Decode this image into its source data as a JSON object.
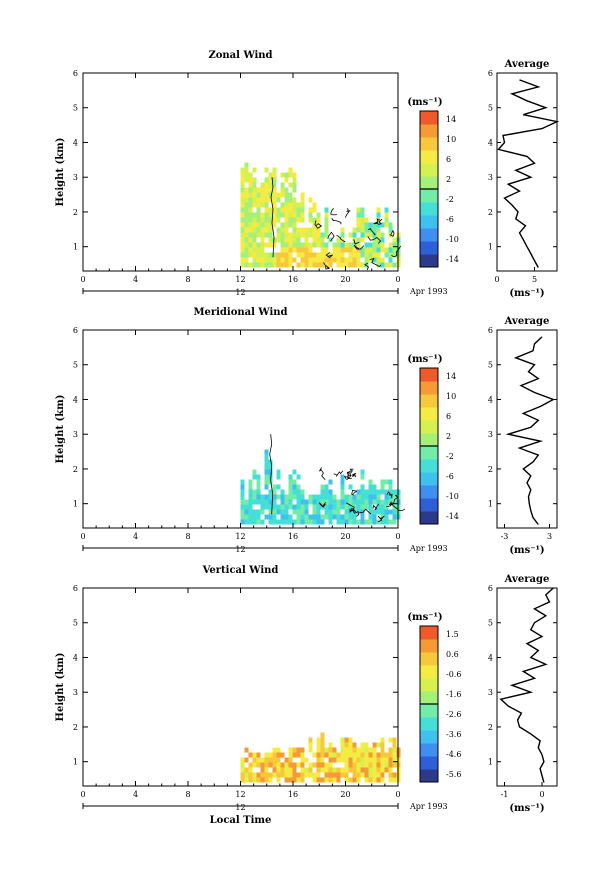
{
  "chart_data": [
    {
      "type": "heatmap",
      "title": "Zonal Wind",
      "ylabel": "Height (km)",
      "xticks": [
        "0",
        "4",
        "8",
        "12",
        "16",
        "20",
        "0"
      ],
      "yticks": [
        "1",
        "2",
        "3",
        "4",
        "5",
        "6"
      ],
      "ylim": [
        0.3,
        6
      ],
      "day_label": "12",
      "date_label": "Apr 1993",
      "colorbar": {
        "unit": "(ms⁻¹)",
        "ticks": [
          "14",
          "10",
          "6",
          "2",
          "-2",
          "-6",
          "-10",
          "-14"
        ],
        "range": [
          -16,
          16
        ]
      },
      "profile": {
        "title": "Average",
        "xticks": [
          "0",
          "5"
        ],
        "xlim": [
          0,
          8
        ],
        "xunit": "(ms⁻¹)",
        "yticks": [
          "1",
          "2",
          "3",
          "4",
          "5",
          "6"
        ],
        "heights": [
          0.4,
          0.6,
          0.8,
          1.0,
          1.2,
          1.4,
          1.6,
          1.8,
          2.0,
          2.2,
          2.4,
          2.6,
          2.8,
          3.0,
          3.2,
          3.4,
          3.6,
          3.8,
          4.0,
          4.2,
          4.4,
          4.6,
          4.8,
          5.0,
          5.2,
          5.4,
          5.6,
          5.8
        ],
        "values": [
          5.5,
          5.0,
          4.5,
          4.0,
          3.5,
          3.0,
          3.8,
          2.5,
          2.8,
          2.0,
          1.0,
          3.0,
          1.5,
          4.5,
          2.5,
          5.0,
          4.0,
          0.2,
          1.0,
          0.8,
          6.0,
          8.0,
          3.5,
          6.5,
          4.0,
          2.0,
          5.5,
          3.0
        ]
      },
      "colorbar_colors": [
        "#2d3a8c",
        "#2f5fd6",
        "#3f8ef0",
        "#3fc0ef",
        "#46dfd8",
        "#73eca9",
        "#a6f07a",
        "#d6f050",
        "#f4ec45",
        "#f7c83c",
        "#f59a35",
        "#ef5a2c"
      ]
    },
    {
      "type": "heatmap",
      "title": "Meridional Wind",
      "ylabel": "Height (km)",
      "xticks": [
        "0",
        "4",
        "8",
        "12",
        "16",
        "20",
        "0"
      ],
      "yticks": [
        "1",
        "2",
        "3",
        "4",
        "5",
        "6"
      ],
      "ylim": [
        0.3,
        6
      ],
      "day_label": "12",
      "date_label": "Apr 1993",
      "colorbar": {
        "unit": "(ms⁻¹)",
        "ticks": [
          "14",
          "10",
          "6",
          "2",
          "-2",
          "-6",
          "-10",
          "-14"
        ],
        "range": [
          -16,
          16
        ]
      },
      "profile": {
        "title": "Average",
        "xticks": [
          "-3",
          "3"
        ],
        "xlim": [
          -4,
          4
        ],
        "xunit": "(ms⁻¹)",
        "yticks": [
          "1",
          "2",
          "3",
          "4",
          "5",
          "6"
        ],
        "heights": [
          0.4,
          0.6,
          0.8,
          1.0,
          1.2,
          1.4,
          1.6,
          1.8,
          2.0,
          2.2,
          2.4,
          2.6,
          2.8,
          3.0,
          3.2,
          3.4,
          3.6,
          3.8,
          4.0,
          4.2,
          4.4,
          4.6,
          4.8,
          5.0,
          5.2,
          5.4,
          5.6,
          5.8
        ],
        "values": [
          1.5,
          0.8,
          0.5,
          0.3,
          0.2,
          0.5,
          0.0,
          0.5,
          -0.5,
          0.8,
          1.5,
          -1.0,
          1.8,
          -2.5,
          0.5,
          1.5,
          -0.5,
          1.8,
          3.5,
          1.0,
          -0.8,
          1.5,
          0.2,
          1.0,
          -1.5,
          0.8,
          1.0,
          2.0
        ]
      },
      "colorbar_colors": [
        "#2d3a8c",
        "#2f5fd6",
        "#3f8ef0",
        "#3fc0ef",
        "#46dfd8",
        "#73eca9",
        "#a6f07a",
        "#d6f050",
        "#f4ec45",
        "#f7c83c",
        "#f59a35",
        "#ef5a2c"
      ]
    },
    {
      "type": "heatmap",
      "title": "Vertical Wind",
      "ylabel": "Height (km)",
      "xlabel": "Local Time",
      "xticks": [
        "0",
        "4",
        "8",
        "12",
        "16",
        "20",
        "0"
      ],
      "yticks": [
        "1",
        "2",
        "3",
        "4",
        "5",
        "6"
      ],
      "ylim": [
        0.3,
        6
      ],
      "day_label": "12",
      "date_label": "Apr 1993",
      "colorbar": {
        "unit": "(ms⁻¹)",
        "ticks": [
          "1.5",
          "0.6",
          "-0.6",
          "-1.6",
          "-2.6",
          "-3.6",
          "-4.6",
          "-5.6"
        ],
        "range": [
          -6,
          2
        ]
      },
      "profile": {
        "title": "Average",
        "xticks": [
          "-1",
          "0"
        ],
        "xlim": [
          -1.2,
          0.4
        ],
        "xunit": "(ms⁻¹)",
        "yticks": [
          "1",
          "2",
          "3",
          "4",
          "5",
          "6"
        ],
        "heights": [
          0.4,
          0.6,
          0.8,
          1.0,
          1.2,
          1.4,
          1.6,
          1.8,
          2.0,
          2.2,
          2.4,
          2.6,
          2.8,
          3.0,
          3.2,
          3.4,
          3.6,
          3.8,
          4.0,
          4.2,
          4.4,
          4.6,
          4.8,
          5.0,
          5.2,
          5.4,
          5.6,
          5.8,
          6.0
        ],
        "values": [
          0.05,
          0.0,
          -0.05,
          0.05,
          0.0,
          -0.1,
          -0.05,
          -0.3,
          -0.6,
          -0.65,
          -0.55,
          -0.9,
          -1.1,
          -0.3,
          -0.8,
          -0.2,
          -0.5,
          0.1,
          -0.3,
          -0.1,
          -0.4,
          0.0,
          -0.3,
          -0.2,
          0.1,
          -0.2,
          0.2,
          0.1,
          0.3
        ]
      },
      "colorbar_colors": [
        "#2d3a8c",
        "#2f5fd6",
        "#3f8ef0",
        "#3fc0ef",
        "#46dfd8",
        "#73eca9",
        "#a6f07a",
        "#d6f050",
        "#f4ec45",
        "#f7c83c",
        "#f59a35",
        "#ef5a2c"
      ]
    }
  ]
}
